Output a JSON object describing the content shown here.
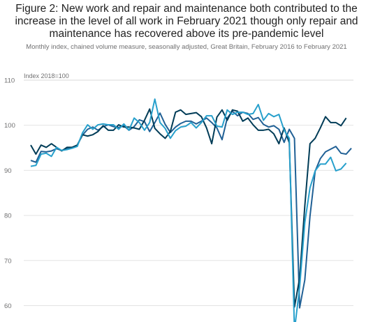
{
  "figure": {
    "title_lines": [
      "Figure 2: New work and repair and maintenance both contributed to the",
      "increase in the level of all work in February 2021 though only repair and",
      "maintenance has recovered above its pre-pandemic level"
    ],
    "subtitle": "Monthly index, chained volume measure, seasonally adjusted, Great Britain, February 2016 to February 2021",
    "unit_label": "Index 2018=100"
  },
  "chart_data": {
    "type": "line",
    "title": "Figure 2: New work and repair and maintenance both contributed to the increase in the level of all work in February 2021 though only repair and maintenance has recovered above its pre-pandemic level",
    "subtitle": "Monthly index, chained volume measure, seasonally adjusted, Great Britain, February 2016 to February 2021",
    "ylabel": "Index 2018=100",
    "ylim": [
      60,
      110
    ],
    "yticks": [
      60,
      70,
      80,
      90,
      100,
      110
    ],
    "x_start": "2016-02",
    "x_end": "2021-02",
    "grid": true,
    "series": [
      {
        "color": "#206095",
        "values": [
          92.2,
          91.8,
          94.2,
          94.1,
          94.3,
          94.8,
          94.4,
          94.9,
          95.1,
          95.6,
          97.8,
          99.1,
          99.6,
          98.9,
          99.7,
          100.1,
          99.7,
          99.5,
          99.9,
          98.9,
          99.7,
          101.2,
          100.8,
          98.6,
          100.6,
          102.7,
          100.2,
          98.4,
          99.6,
          100.4,
          100.9,
          100.9,
          100.3,
          100.9,
          101.6,
          100.6,
          99.4,
          96.8,
          101.6,
          103.1,
          102.1,
          102.9,
          102.6,
          101.3,
          101.7,
          100.2,
          99.6,
          99.9,
          99.1,
          96.2,
          99.1,
          97.1,
          59.5,
          65.7,
          79.8,
          89.8,
          92.6,
          94.1,
          94.7,
          95.3,
          93.8,
          93.6,
          94.9
        ]
      },
      {
        "color": "#003c57",
        "values": [
          95.6,
          93.6,
          95.6,
          95.1,
          95.9,
          95.1,
          94.3,
          95.1,
          95.1,
          95.6,
          97.9,
          97.6,
          97.9,
          98.6,
          99.9,
          98.9,
          98.9,
          100.1,
          99.6,
          99.6,
          99.4,
          99.1,
          101.1,
          103.6,
          99.3,
          98.1,
          97.1,
          98.6,
          102.9,
          103.4,
          102.4,
          102.6,
          102.8,
          101.9,
          99.4,
          95.9,
          101.8,
          103.4,
          101.1,
          103.4,
          103.1,
          100.9,
          101.6,
          100.1,
          98.9,
          98.9,
          99.1,
          98.1,
          95.9,
          99.4,
          96.1,
          59.7,
          66.1,
          82.1,
          95.9,
          97.1,
          99.4,
          101.9,
          100.6,
          100.6,
          99.9,
          101.6
        ]
      },
      {
        "color": "#27a0cc",
        "values": [
          90.9,
          91.1,
          93.6,
          93.8,
          93.1,
          95.1,
          94.4,
          94.6,
          94.9,
          95.3,
          98.3,
          100.1,
          99.1,
          100.1,
          100.3,
          100.1,
          100.1,
          99.1,
          100.3,
          98.9,
          101.6,
          100.6,
          98.9,
          100.6,
          105.8,
          100.6,
          99.3,
          97.1,
          98.8,
          99.6,
          99.8,
          100.6,
          99.4,
          100.6,
          102.1,
          102.1,
          99.8,
          99.6,
          103.4,
          102.4,
          102.9,
          102.9,
          102.4,
          102.6,
          104.6,
          101.1,
          102.6,
          101.9,
          102.4,
          98.9,
          97.1,
          54.5,
          64.1,
          78.4,
          86.1,
          89.9,
          91.4,
          91.4,
          92.9,
          89.9,
          90.3,
          91.6
        ]
      }
    ]
  }
}
